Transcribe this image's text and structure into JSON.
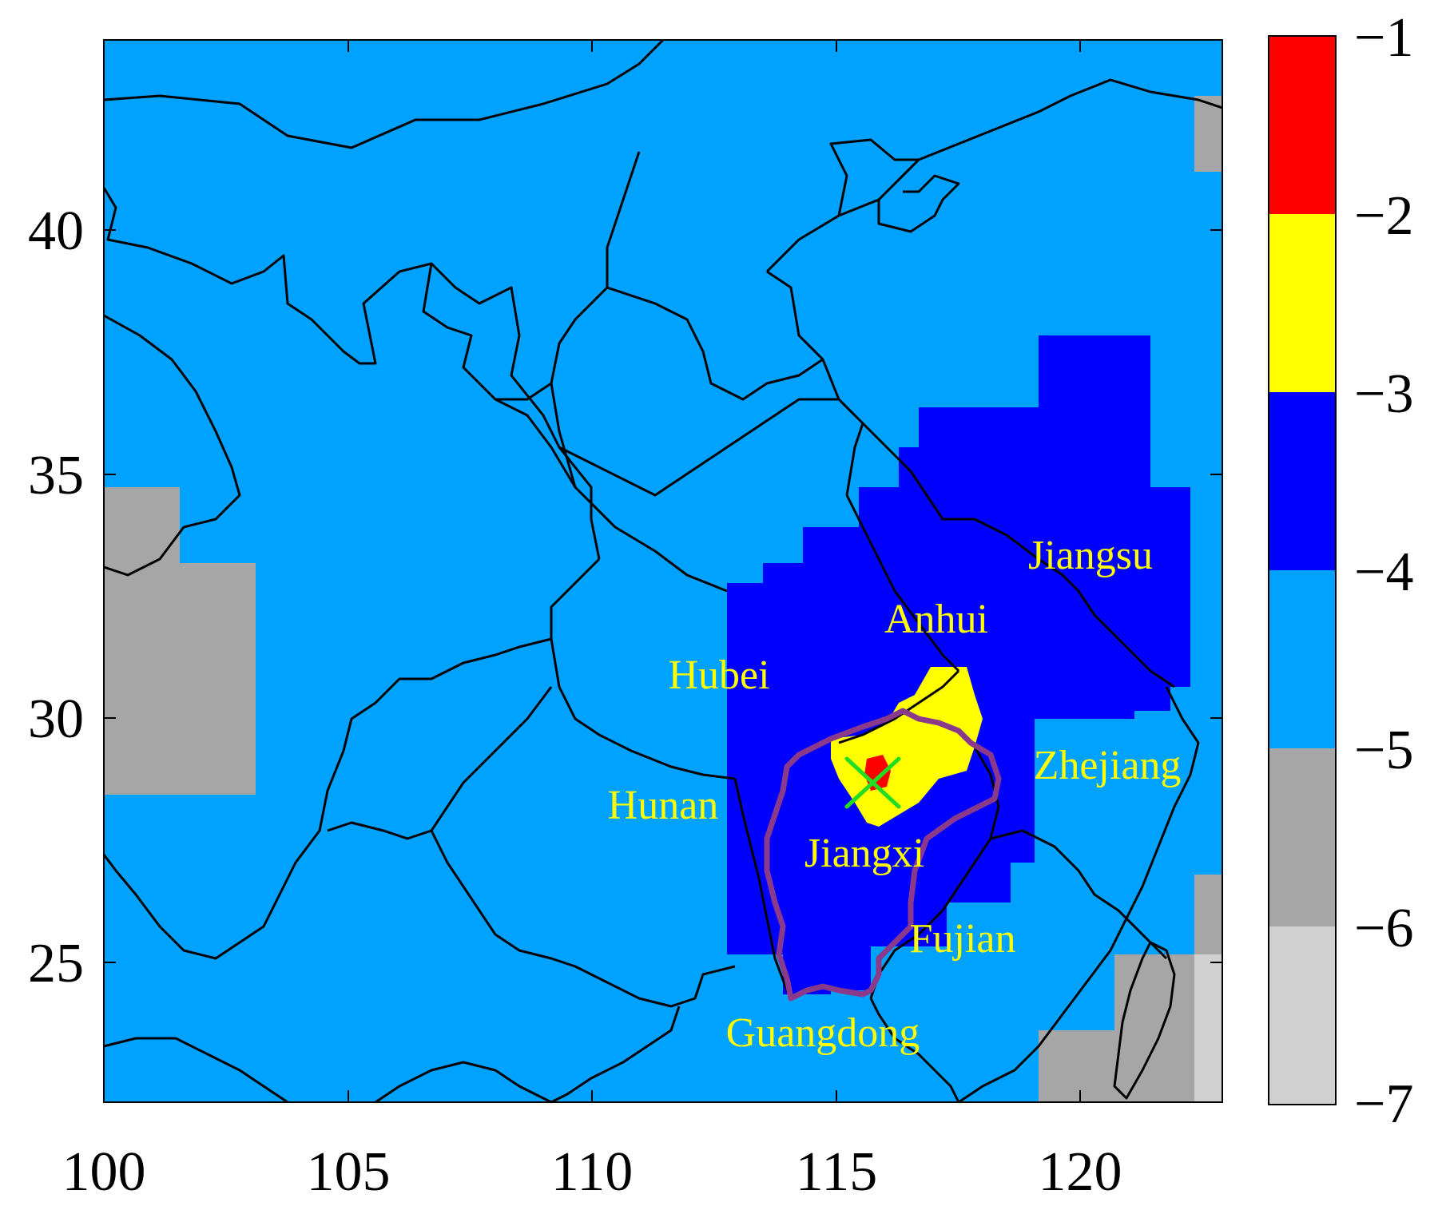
{
  "map": {
    "lon_ticks": [
      "100",
      "105",
      "110",
      "115",
      "120"
    ],
    "lat_ticks": [
      "40",
      "35",
      "30",
      "25"
    ],
    "lon_range": [
      100,
      123
    ],
    "lat_range": [
      22,
      44
    ],
    "province_labels": [
      {
        "name": "Jiangsu"
      },
      {
        "name": "Anhui"
      },
      {
        "name": "Hubei"
      },
      {
        "name": "Zhejiang"
      },
      {
        "name": "Hunan"
      },
      {
        "name": "Jiangxi"
      },
      {
        "name": "Fujian"
      },
      {
        "name": "Guangdong"
      }
    ],
    "label_color": "#ffff00",
    "marker": {
      "symbol": "x",
      "color": "#22dd22",
      "lon": 115.8,
      "lat": 28.7
    }
  },
  "colorbar": {
    "ticks": [
      "−1",
      "−2",
      "−3",
      "−4",
      "−5",
      "−6",
      "−7"
    ],
    "bands": [
      {
        "from": -2,
        "to": -1,
        "color": "#ff0000"
      },
      {
        "from": -3,
        "to": -2,
        "color": "#ffff00"
      },
      {
        "from": -4,
        "to": -3,
        "color": "#0000ff"
      },
      {
        "from": -5,
        "to": -4,
        "color": "#00a2ff"
      },
      {
        "from": -6,
        "to": -5,
        "color": "#a6a6a6"
      },
      {
        "from": -7,
        "to": -6,
        "color": "#d0d0d0"
      }
    ]
  },
  "colors": {
    "background_field": "#00a2ff",
    "boundary_lines": "#000000",
    "jiangxi_outline": "#8b3a8b"
  }
}
